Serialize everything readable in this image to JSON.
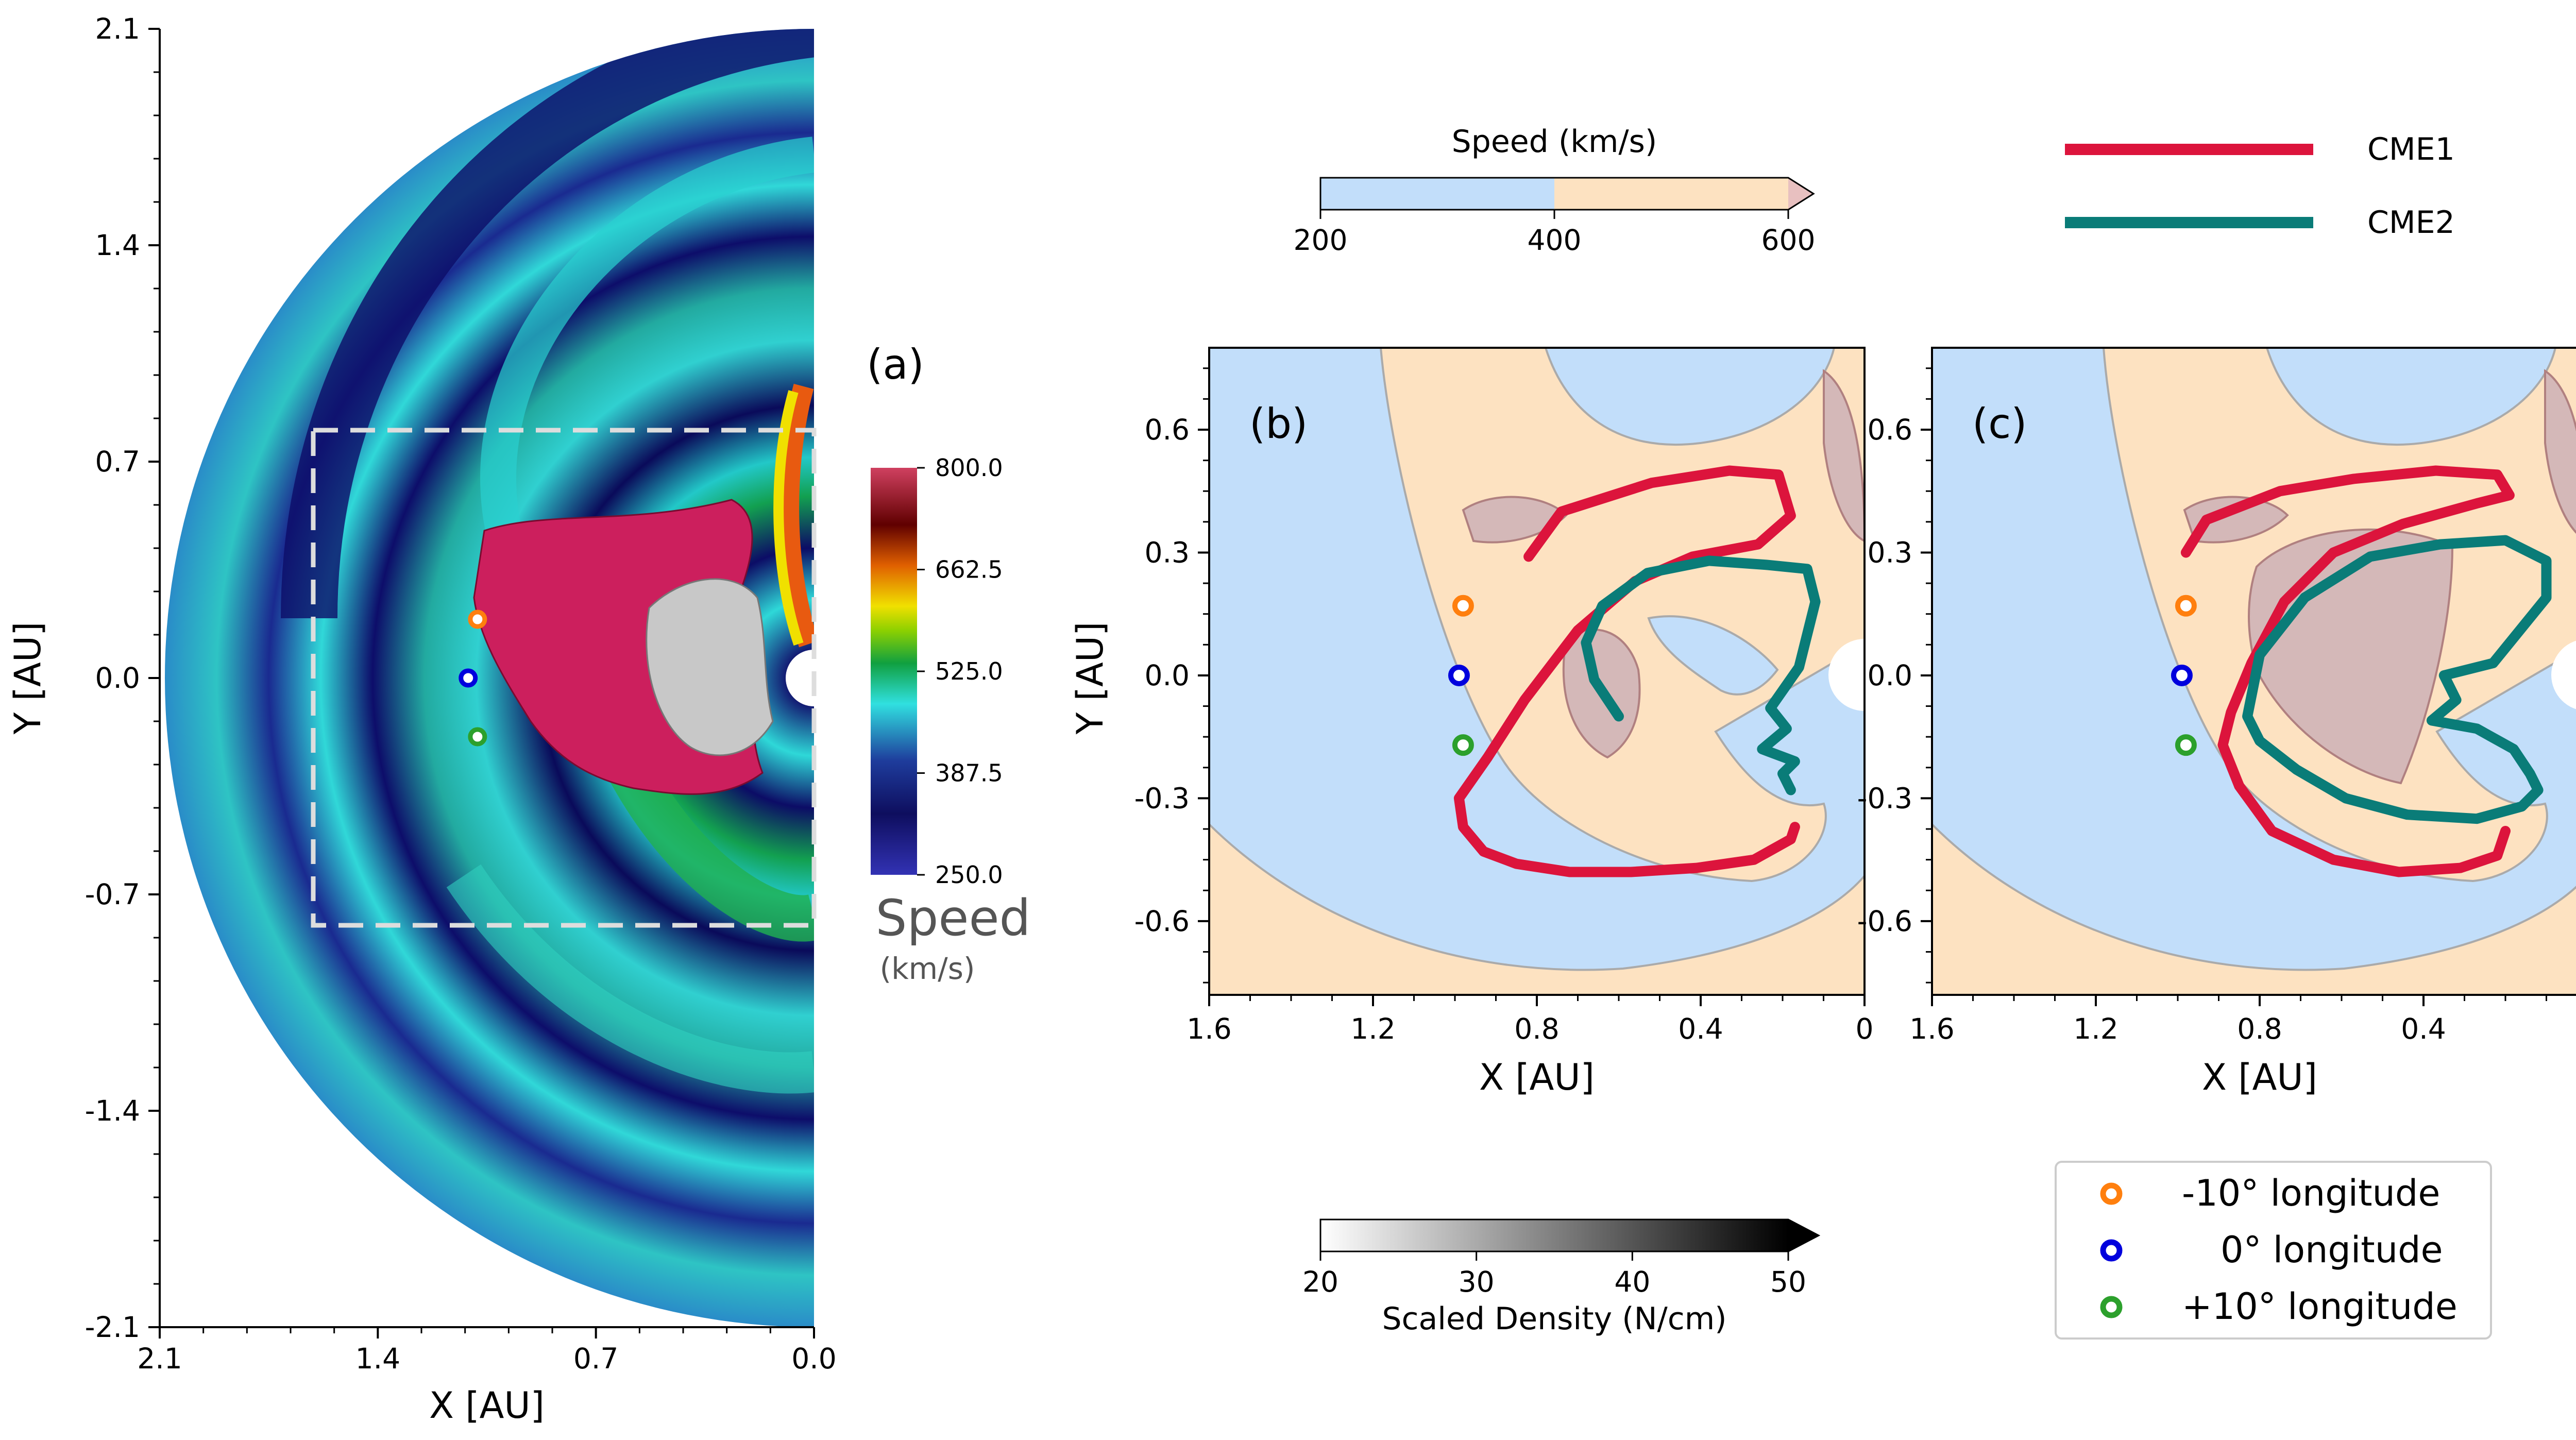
{
  "panel_a": {
    "label": "(a)",
    "xlabel": "X   [AU]",
    "ylabel": "Y   [AU]",
    "xticks": [
      "2.1",
      "1.4",
      "0.7",
      "0.0"
    ],
    "yticks": [
      "2.1",
      "1.4",
      "0.7",
      "0.0",
      "-0.7",
      "-1.4",
      "-2.1"
    ],
    "colorbar": {
      "ticks": [
        "800.0",
        "662.5",
        "525.0",
        "387.5",
        "250.0"
      ],
      "title": "Speed",
      "unit": "(km/s)",
      "colors": [
        "#3030b0",
        "#101060",
        "#30e0e0",
        "#10a040",
        "#f0e000",
        "#e06000",
        "#600000",
        "#d04060"
      ]
    }
  },
  "speed_bar": {
    "title": "Speed (km/s)",
    "ticks": [
      "200",
      "400",
      "600"
    ],
    "colors": {
      "slow": "#c2defa",
      "fast": "#fde2c1"
    }
  },
  "cme_legend": [
    {
      "label": "CME1",
      "color": "#dc143c"
    },
    {
      "label": "CME2",
      "color": "#0a7c78"
    }
  ],
  "panels": [
    {
      "label": "(b)",
      "xlabel": "X   [AU]",
      "ylabel": "Y   [AU]"
    },
    {
      "label": "(c)",
      "xlabel": "X   [AU]"
    }
  ],
  "zoom_axes": {
    "xticks": [
      "1.6",
      "1.2",
      "0.8",
      "0.4",
      "0"
    ],
    "yticks": [
      "0.6",
      "0.3",
      "0.0",
      "-0.3",
      "-0.6"
    ]
  },
  "density_bar": {
    "title": "Scaled Density (N/cm)",
    "ticks": [
      "20",
      "30",
      "40",
      "50"
    ]
  },
  "longitude_legend": [
    {
      "label": "-10° longitude",
      "color": "#ff7f0e"
    },
    {
      "label": "0° longitude",
      "color": "#0000dd"
    },
    {
      "label": "+10° longitude",
      "color": "#2ca02c"
    }
  ],
  "chart_data": [
    {
      "type": "heatmap",
      "title": "",
      "xlabel": "X   [AU]",
      "ylabel": "Y   [AU]",
      "xlim": [
        2.1,
        0.0
      ],
      "ylim": [
        -2.1,
        2.1
      ],
      "colorbar_range": [
        250.0,
        800.0
      ],
      "colorbar_label": "Speed (km/s)",
      "observers": [
        {
          "name": "-10° longitude",
          "x": 1.08,
          "y": 0.19
        },
        {
          "name": "0° longitude",
          "x": 1.11,
          "y": 0.0
        },
        {
          "name": "+10° longitude",
          "x": 1.08,
          "y": -0.19
        }
      ],
      "zoom_box": {
        "x": [
          0.0,
          1.6
        ],
        "y": [
          -0.8,
          0.8
        ]
      }
    },
    {
      "type": "line",
      "title": "(b)",
      "xlabel": "X   [AU]",
      "ylabel": "Y   [AU]",
      "xlim": [
        1.6,
        0.0
      ],
      "ylim": [
        -0.78,
        0.8
      ],
      "series": [
        {
          "name": "CME1",
          "x": [
            0.82,
            0.74,
            0.52,
            0.33,
            0.21,
            0.18,
            0.26,
            0.42,
            0.56,
            0.7,
            0.83,
            0.92,
            0.99,
            0.98,
            0.93,
            0.85,
            0.72,
            0.57,
            0.41,
            0.27,
            0.18,
            0.17
          ],
          "y": [
            0.29,
            0.4,
            0.47,
            0.5,
            0.49,
            0.39,
            0.32,
            0.29,
            0.23,
            0.11,
            -0.06,
            -0.2,
            -0.3,
            -0.37,
            -0.43,
            -0.46,
            -0.48,
            -0.48,
            -0.47,
            -0.45,
            -0.4,
            -0.37
          ]
        },
        {
          "name": "CME2",
          "x": [
            0.6,
            0.66,
            0.68,
            0.64,
            0.53,
            0.38,
            0.24,
            0.14,
            0.12,
            0.16,
            0.23,
            0.19,
            0.25,
            0.17,
            0.2,
            0.18
          ],
          "y": [
            -0.1,
            -0.01,
            0.08,
            0.17,
            0.25,
            0.28,
            0.27,
            0.26,
            0.18,
            0.02,
            -0.08,
            -0.13,
            -0.18,
            -0.21,
            -0.24,
            -0.28
          ]
        }
      ],
      "observers": [
        {
          "name": "-10° longitude",
          "x": 0.98,
          "y": 0.17
        },
        {
          "name": "0° longitude",
          "x": 0.99,
          "y": 0.0
        },
        {
          "name": "+10° longitude",
          "x": 0.98,
          "y": -0.17
        }
      ]
    },
    {
      "type": "line",
      "title": "(c)",
      "xlabel": "X   [AU]",
      "ylabel": "",
      "xlim": [
        1.6,
        0.0
      ],
      "ylim": [
        -0.78,
        0.8
      ],
      "series": [
        {
          "name": "CME1",
          "x": [
            0.98,
            0.93,
            0.75,
            0.57,
            0.37,
            0.22,
            0.19,
            0.27,
            0.45,
            0.62,
            0.74,
            0.82,
            0.87,
            0.89,
            0.85,
            0.77,
            0.62,
            0.46,
            0.31,
            0.22,
            0.2
          ],
          "y": [
            0.3,
            0.38,
            0.45,
            0.48,
            0.5,
            0.49,
            0.44,
            0.42,
            0.37,
            0.3,
            0.18,
            0.03,
            -0.09,
            -0.17,
            -0.27,
            -0.38,
            -0.45,
            -0.48,
            -0.47,
            -0.44,
            -0.38
          ]
        },
        {
          "name": "CME2",
          "x": [
            0.83,
            0.8,
            0.69,
            0.53,
            0.36,
            0.2,
            0.1,
            0.1,
            0.23,
            0.35,
            0.32,
            0.38,
            0.27,
            0.18,
            0.14,
            0.12,
            0.16,
            0.27,
            0.44,
            0.59,
            0.71,
            0.8,
            0.83
          ],
          "y": [
            -0.1,
            0.05,
            0.19,
            0.29,
            0.32,
            0.33,
            0.28,
            0.19,
            0.03,
            0.0,
            -0.06,
            -0.11,
            -0.13,
            -0.18,
            -0.24,
            -0.28,
            -0.32,
            -0.35,
            -0.34,
            -0.3,
            -0.23,
            -0.16,
            -0.1
          ]
        }
      ],
      "observers": [
        {
          "name": "-10° longitude",
          "x": 0.98,
          "y": 0.17
        },
        {
          "name": "0° longitude",
          "x": 0.99,
          "y": 0.0
        },
        {
          "name": "+10° longitude",
          "x": 0.98,
          "y": -0.17
        }
      ]
    }
  ]
}
